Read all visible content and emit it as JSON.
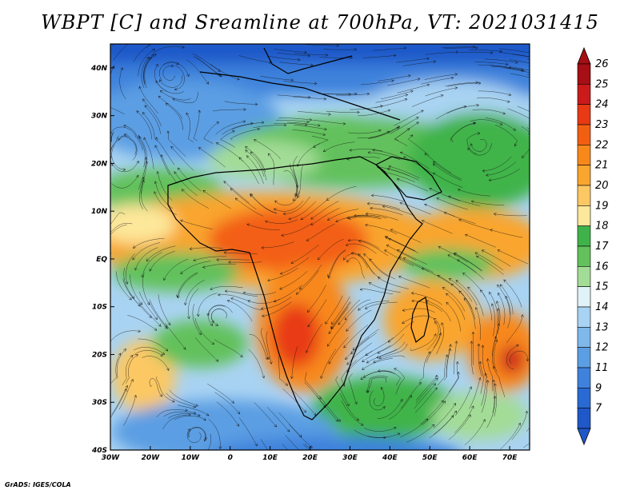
{
  "title": "WBPT [C] and Sreamline at 700hPa, VT: 2021031415",
  "credit": "GrADS: IGES/COLA",
  "map": {
    "lon_range": [
      -30,
      75
    ],
    "lat_range": [
      -40,
      45
    ],
    "lon_ticks": [
      {
        "value": -30,
        "label": "30W"
      },
      {
        "value": -20,
        "label": "20W"
      },
      {
        "value": -10,
        "label": "10W"
      },
      {
        "value": 0,
        "label": "0"
      },
      {
        "value": 10,
        "label": "10E"
      },
      {
        "value": 20,
        "label": "20E"
      },
      {
        "value": 30,
        "label": "30E"
      },
      {
        "value": 40,
        "label": "40E"
      },
      {
        "value": 50,
        "label": "50E"
      },
      {
        "value": 60,
        "label": "60E"
      },
      {
        "value": 70,
        "label": "70E"
      }
    ],
    "lat_ticks": [
      {
        "value": 40,
        "label": "40N"
      },
      {
        "value": 30,
        "label": "30N"
      },
      {
        "value": 20,
        "label": "20N"
      },
      {
        "value": 10,
        "label": "10N"
      },
      {
        "value": 0,
        "label": "EQ"
      },
      {
        "value": -10,
        "label": "10S"
      },
      {
        "value": -20,
        "label": "20S"
      },
      {
        "value": -30,
        "label": "30S"
      },
      {
        "value": -40,
        "label": "40S"
      }
    ]
  },
  "colorbar": {
    "levels": [
      {
        "label": "26",
        "color": "#a50f15"
      },
      {
        "label": "25",
        "color": "#cb1a1a"
      },
      {
        "label": "24",
        "color": "#e83a14"
      },
      {
        "label": "23",
        "color": "#f35f12"
      },
      {
        "label": "22",
        "color": "#f8881a"
      },
      {
        "label": "21",
        "color": "#f9a52e"
      },
      {
        "label": "20",
        "color": "#fbc863"
      },
      {
        "label": "19",
        "color": "#fde79a"
      },
      {
        "label": "18",
        "color": "#3fb34a"
      },
      {
        "label": "17",
        "color": "#62c15b"
      },
      {
        "label": "16",
        "color": "#a3dc96"
      },
      {
        "label": "15",
        "color": "#e0f3f8"
      },
      {
        "label": "14",
        "color": "#a9d3f2"
      },
      {
        "label": "13",
        "color": "#7fb8ea"
      },
      {
        "label": "12",
        "color": "#5b9ee3"
      },
      {
        "label": "11",
        "color": "#3e82dc"
      },
      {
        "label": "9",
        "color": "#2a6ad3"
      },
      {
        "label": "7",
        "color": "#1f58c9"
      }
    ],
    "top_color": "#a50f15",
    "bottom_color": "#1f58c9"
  }
}
